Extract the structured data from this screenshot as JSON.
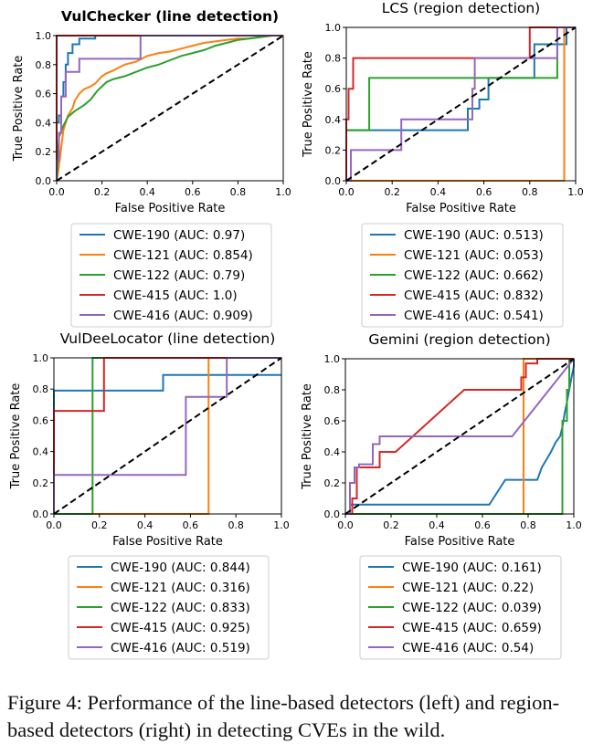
{
  "chart_data": [
    {
      "type": "line",
      "title": "VulChecker (line detection)",
      "title_bold": true,
      "xlabel": "False Positive Rate",
      "ylabel": "True Positive Rate",
      "xlim": [
        0,
        1
      ],
      "ylim": [
        0,
        1
      ],
      "xticks": [
        "0.0",
        "0.2",
        "0.4",
        "0.6",
        "0.8",
        "1.0"
      ],
      "yticks": [
        "0.0",
        "0.2",
        "0.4",
        "0.6",
        "0.8",
        "1.0"
      ],
      "grid": false,
      "legend_position": "below",
      "diagonal": true,
      "series": [
        {
          "name": "CWE-190 (AUC: 0.97)",
          "color": "#1f77b4",
          "x": [
            0,
            0,
            0.01,
            0.01,
            0.02,
            0.02,
            0.03,
            0.03,
            0.04,
            0.04,
            0.05,
            0.05,
            0.07,
            0.07,
            0.1,
            0.1,
            0.17,
            0.17,
            1.0
          ],
          "y": [
            0,
            0.4,
            0.4,
            0.45,
            0.45,
            0.58,
            0.58,
            0.68,
            0.68,
            0.8,
            0.8,
            0.88,
            0.88,
            0.94,
            0.94,
            0.98,
            0.98,
            1.0,
            1.0
          ]
        },
        {
          "name": "CWE-121 (AUC: 0.854)",
          "color": "#ff7f0e",
          "x": [
            0,
            0.01,
            0.03,
            0.05,
            0.07,
            0.08,
            0.1,
            0.12,
            0.15,
            0.17,
            0.2,
            0.22,
            0.25,
            0.3,
            0.35,
            0.4,
            0.45,
            0.5,
            0.55,
            0.6,
            0.65,
            0.7,
            0.75,
            0.8,
            0.85,
            0.9,
            0.95,
            1.0
          ],
          "y": [
            0,
            0.1,
            0.35,
            0.45,
            0.5,
            0.55,
            0.6,
            0.63,
            0.65,
            0.67,
            0.72,
            0.74,
            0.76,
            0.8,
            0.82,
            0.86,
            0.88,
            0.89,
            0.91,
            0.93,
            0.95,
            0.96,
            0.97,
            0.98,
            0.98,
            0.99,
            1.0,
            1.0
          ]
        },
        {
          "name": "CWE-122 (AUC: 0.79)",
          "color": "#2ca02c",
          "x": [
            0,
            0.01,
            0.03,
            0.05,
            0.08,
            0.12,
            0.15,
            0.18,
            0.22,
            0.25,
            0.3,
            0.35,
            0.4,
            0.45,
            0.5,
            0.55,
            0.6,
            0.65,
            0.7,
            0.75,
            0.8,
            0.85,
            0.9,
            0.95,
            1.0
          ],
          "y": [
            0,
            0.3,
            0.38,
            0.44,
            0.48,
            0.52,
            0.56,
            0.62,
            0.68,
            0.7,
            0.72,
            0.75,
            0.78,
            0.8,
            0.83,
            0.86,
            0.88,
            0.9,
            0.93,
            0.95,
            0.97,
            0.98,
            0.99,
            1.0,
            1.0
          ]
        },
        {
          "name": "CWE-415 (AUC: 1.0)",
          "color": "#d62728",
          "x": [
            0,
            0,
            1.0
          ],
          "y": [
            0,
            1.0,
            1.0
          ]
        },
        {
          "name": "CWE-416 (AUC: 0.909)",
          "color": "#9467bd",
          "x": [
            0,
            0,
            0.01,
            0.01,
            0.02,
            0.02,
            0.04,
            0.04,
            0.1,
            0.1,
            0.37,
            0.37,
            1.0
          ],
          "y": [
            0,
            0.14,
            0.14,
            0.33,
            0.33,
            0.58,
            0.58,
            0.75,
            0.75,
            0.84,
            0.84,
            1.0,
            1.0
          ]
        }
      ]
    },
    {
      "type": "line",
      "title": "LCS (region detection)",
      "title_bold": false,
      "xlabel": "False Positive Rate",
      "ylabel": "True Positive Rate",
      "xlim": [
        0,
        1
      ],
      "ylim": [
        0,
        1
      ],
      "xticks": [
        "0.0",
        "0.2",
        "0.4",
        "0.6",
        "0.8",
        "1.0"
      ],
      "yticks": [
        "0.0",
        "0.2",
        "0.4",
        "0.6",
        "0.8",
        "1.0"
      ],
      "grid": false,
      "legend_position": "below",
      "diagonal": true,
      "series": [
        {
          "name": "CWE-190 (AUC: 0.513)",
          "color": "#1f77b4",
          "x": [
            0,
            0,
            0.02,
            0.02,
            0.53,
            0.53,
            0.58,
            0.58,
            0.62,
            0.62,
            0.82,
            0.82,
            0.96,
            0.96,
            1.0
          ],
          "y": [
            0,
            0.33,
            0.33,
            0.33,
            0.33,
            0.47,
            0.47,
            0.53,
            0.53,
            0.67,
            0.67,
            0.89,
            0.89,
            1.0,
            1.0
          ]
        },
        {
          "name": "CWE-121 (AUC: 0.053)",
          "color": "#ff7f0e",
          "x": [
            0,
            0.95,
            0.95,
            1.0
          ],
          "y": [
            0,
            0,
            1.0,
            1.0
          ]
        },
        {
          "name": "CWE-122 (AUC: 0.662)",
          "color": "#2ca02c",
          "x": [
            0,
            0,
            0.1,
            0.1,
            0.92,
            0.92,
            1.0
          ],
          "y": [
            0,
            0.33,
            0.33,
            0.67,
            0.67,
            1.0,
            1.0
          ]
        },
        {
          "name": "CWE-415 (AUC: 0.832)",
          "color": "#d62728",
          "x": [
            0,
            0,
            0.01,
            0.01,
            0.02,
            0.02,
            0.03,
            0.03,
            0.8,
            0.8,
            1.0
          ],
          "y": [
            0,
            0.4,
            0.4,
            0.6,
            0.6,
            0.6,
            0.6,
            0.8,
            0.8,
            1.0,
            1.0
          ]
        },
        {
          "name": "CWE-416 (AUC: 0.541)",
          "color": "#9467bd",
          "x": [
            0,
            0.02,
            0.02,
            0.24,
            0.24,
            0.55,
            0.55,
            0.56,
            0.56,
            0.92,
            0.92,
            1.0
          ],
          "y": [
            0,
            0,
            0.2,
            0.2,
            0.4,
            0.4,
            0.6,
            0.6,
            0.8,
            0.8,
            1.0,
            1.0
          ]
        }
      ]
    },
    {
      "type": "line",
      "title": "VulDeeLocator (line detection)",
      "title_bold": false,
      "xlabel": "False Positive Rate",
      "ylabel": "True Positive Rate",
      "xlim": [
        0,
        1
      ],
      "ylim": [
        0,
        1
      ],
      "xticks": [
        "0.0",
        "0.2",
        "0.4",
        "0.6",
        "0.8",
        "1.0"
      ],
      "yticks": [
        "0.0",
        "0.2",
        "0.4",
        "0.6",
        "0.8",
        "1.0"
      ],
      "grid": false,
      "legend_position": "below",
      "diagonal": true,
      "series": [
        {
          "name": "CWE-190 (AUC: 0.844)",
          "color": "#1f77b4",
          "x": [
            0,
            0,
            0.48,
            0.48,
            1.0
          ],
          "y": [
            0,
            0.79,
            0.79,
            0.89,
            0.89
          ]
        },
        {
          "name": "CWE-121 (AUC: 0.316)",
          "color": "#ff7f0e",
          "x": [
            0,
            0.68,
            0.68,
            1.0
          ],
          "y": [
            0,
            0,
            1.0,
            1.0
          ]
        },
        {
          "name": "CWE-122 (AUC: 0.833)",
          "color": "#2ca02c",
          "x": [
            0,
            0.17,
            0.17,
            1.0
          ],
          "y": [
            0,
            0,
            1.0,
            1.0
          ]
        },
        {
          "name": "CWE-415 (AUC: 0.925)",
          "color": "#d62728",
          "x": [
            0,
            0,
            0.22,
            0.22,
            1.0
          ],
          "y": [
            0,
            0.66,
            0.66,
            1.0,
            1.0
          ]
        },
        {
          "name": "CWE-416 (AUC: 0.519)",
          "color": "#9467bd",
          "x": [
            0,
            0,
            0.58,
            0.58,
            0.76,
            0.76,
            1.0
          ],
          "y": [
            0,
            0.25,
            0.25,
            0.75,
            0.75,
            1.0,
            1.0
          ]
        }
      ]
    },
    {
      "type": "line",
      "title": "Gemini (region detection)",
      "title_bold": false,
      "xlabel": "False Positive Rate",
      "ylabel": "True Positive Rate",
      "xlim": [
        0,
        1
      ],
      "ylim": [
        0,
        1
      ],
      "xticks": [
        "0.0",
        "0.2",
        "0.4",
        "0.6",
        "0.8",
        "1.0"
      ],
      "yticks": [
        "0.0",
        "0.2",
        "0.4",
        "0.6",
        "0.8",
        "1.0"
      ],
      "grid": false,
      "legend_position": "below",
      "diagonal": true,
      "series": [
        {
          "name": "CWE-190 (AUC: 0.161)",
          "color": "#1f77b4",
          "x": [
            0,
            0.02,
            0.02,
            0.63,
            0.7,
            0.7,
            0.84,
            0.86,
            0.88,
            0.9,
            0.92,
            0.94,
            0.95,
            0.96,
            0.97,
            0.98,
            0.99,
            1.0,
            1.0
          ],
          "y": [
            0,
            0,
            0.06,
            0.06,
            0.22,
            0.22,
            0.22,
            0.3,
            0.35,
            0.4,
            0.46,
            0.5,
            0.56,
            0.65,
            0.72,
            0.8,
            0.88,
            0.95,
            1.0
          ]
        },
        {
          "name": "CWE-121 (AUC: 0.22)",
          "color": "#ff7f0e",
          "x": [
            0,
            0.78,
            0.78,
            1.0
          ],
          "y": [
            0,
            0,
            1.0,
            1.0
          ]
        },
        {
          "name": "CWE-122 (AUC: 0.039)",
          "color": "#2ca02c",
          "x": [
            0,
            0.95,
            0.95,
            0.97,
            0.97,
            0.98,
            0.98,
            1.0
          ],
          "y": [
            0,
            0,
            0.6,
            0.6,
            0.8,
            0.8,
            1.0,
            1.0
          ]
        },
        {
          "name": "CWE-415 (AUC: 0.659)",
          "color": "#d62728",
          "x": [
            0,
            0.03,
            0.03,
            0.05,
            0.05,
            0.1,
            0.1,
            0.15,
            0.15,
            0.22,
            0.52,
            0.77,
            0.77,
            0.79,
            0.79,
            0.84,
            0.84,
            1.0
          ],
          "y": [
            0,
            0,
            0.1,
            0.1,
            0.3,
            0.3,
            0.3,
            0.3,
            0.4,
            0.4,
            0.8,
            0.8,
            0.88,
            0.88,
            0.97,
            0.97,
            1.0,
            1.0
          ]
        },
        {
          "name": "CWE-416 (AUC: 0.54)",
          "color": "#9467bd",
          "x": [
            0,
            0.02,
            0.02,
            0.04,
            0.04,
            0.06,
            0.06,
            0.12,
            0.12,
            0.15,
            0.15,
            0.73,
            1.0
          ],
          "y": [
            0,
            0,
            0.2,
            0.2,
            0.3,
            0.3,
            0.32,
            0.32,
            0.45,
            0.45,
            0.5,
            0.5,
            1.0
          ]
        }
      ]
    }
  ],
  "caption": "Figure 4: Performance of the line-based detectors (left) and region-based detectors (right) in detecting CVEs in the wild."
}
